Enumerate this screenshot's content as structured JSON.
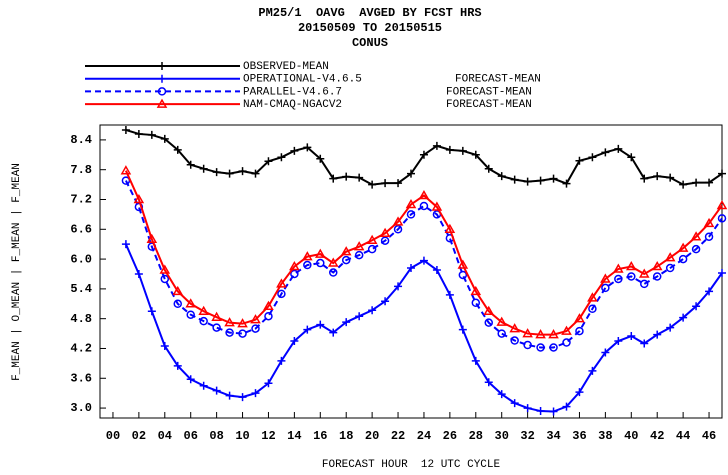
{
  "chart_data": {
    "type": "line",
    "title": [
      "PM25/1  OAVG  AVGED BY FCST HRS",
      "20150509 TO 20150515",
      "CONUS"
    ],
    "x_label": "FORECAST HOUR  12 UTC CYCLE",
    "y_label": "F_MEAN | O_MEAN | F_MEAN | F_MEAN",
    "x": [
      1,
      2,
      3,
      4,
      5,
      6,
      7,
      8,
      9,
      10,
      11,
      12,
      13,
      14,
      15,
      16,
      17,
      18,
      19,
      20,
      21,
      22,
      23,
      24,
      25,
      26,
      27,
      28,
      29,
      30,
      31,
      32,
      33,
      34,
      35,
      36,
      37,
      38,
      39,
      40,
      41,
      42,
      43,
      44,
      45,
      46,
      47
    ],
    "xlim": [
      -1,
      47
    ],
    "ylim": [
      2.8,
      8.7
    ],
    "xticks": [
      {
        "value": 0,
        "label": "00"
      },
      {
        "value": 2,
        "label": "02"
      },
      {
        "value": 4,
        "label": "04"
      },
      {
        "value": 6,
        "label": "06"
      },
      {
        "value": 8,
        "label": "08"
      },
      10,
      12,
      14,
      16,
      18,
      20,
      22,
      24,
      26,
      28,
      30,
      32,
      34,
      36,
      38,
      40,
      42,
      44,
      46
    ],
    "yticks": [
      {
        "value": 3,
        "label": "3.0"
      },
      3.6,
      4.2,
      4.8,
      5.4,
      {
        "value": 6,
        "label": "6.0"
      },
      6.6,
      7.2,
      7.8,
      8.4
    ],
    "grid": false,
    "series": [
      {
        "name": "OBSERVED-MEAN",
        "color": "#000000",
        "marker": "plus",
        "dash": false,
        "values": [
          8.6,
          8.52,
          8.5,
          8.42,
          8.2,
          7.9,
          7.82,
          7.75,
          7.72,
          7.77,
          7.72,
          7.97,
          8.05,
          8.18,
          8.25,
          8.02,
          7.62,
          7.66,
          7.64,
          7.5,
          7.53,
          7.53,
          7.72,
          8.1,
          8.28,
          8.2,
          8.18,
          8.1,
          7.82,
          7.67,
          7.6,
          7.56,
          7.58,
          7.62,
          7.52,
          7.98,
          8.05,
          8.15,
          8.22,
          8.05,
          7.62,
          7.67,
          7.64,
          7.5,
          7.54,
          7.54,
          7.72
        ]
      },
      {
        "name": "OPERATIONAL-V4.6.5",
        "description": "FORECAST-MEAN",
        "color": "#0000ff",
        "marker": "plus",
        "dash": false,
        "values": [
          6.3,
          5.7,
          4.95,
          4.25,
          3.85,
          3.58,
          3.45,
          3.35,
          3.25,
          3.22,
          3.3,
          3.5,
          3.95,
          4.35,
          4.58,
          4.68,
          4.52,
          4.73,
          4.85,
          4.97,
          5.15,
          5.45,
          5.82,
          5.97,
          5.78,
          5.28,
          4.58,
          3.95,
          3.52,
          3.28,
          3.1,
          3.0,
          2.94,
          2.93,
          3.03,
          3.32,
          3.75,
          4.12,
          4.35,
          4.45,
          4.3,
          4.48,
          4.62,
          4.82,
          5.05,
          5.35,
          5.72
        ]
      },
      {
        "name": "PARALLEL-V4.6.7",
        "description": "FORECAST-MEAN",
        "color": "#0000ff",
        "marker": "circle",
        "dash": true,
        "values": [
          7.58,
          7.05,
          6.25,
          5.6,
          5.1,
          4.88,
          4.75,
          4.62,
          4.52,
          4.5,
          4.6,
          4.85,
          5.3,
          5.7,
          5.88,
          5.92,
          5.73,
          5.98,
          6.08,
          6.2,
          6.37,
          6.6,
          6.9,
          7.07,
          6.9,
          6.42,
          5.68,
          5.12,
          4.72,
          4.5,
          4.36,
          4.27,
          4.22,
          4.22,
          4.32,
          4.55,
          5.0,
          5.42,
          5.6,
          5.65,
          5.5,
          5.65,
          5.82,
          6.0,
          6.2,
          6.45,
          6.82
        ]
      },
      {
        "name": "NAM-CMAQ-NGACV2",
        "description": "FORECAST-MEAN",
        "color": "#ff0000",
        "marker": "triangle",
        "dash": false,
        "values": [
          7.78,
          7.2,
          6.4,
          5.78,
          5.35,
          5.1,
          4.95,
          4.83,
          4.72,
          4.7,
          4.78,
          5.05,
          5.5,
          5.85,
          6.05,
          6.1,
          5.92,
          6.15,
          6.25,
          6.38,
          6.52,
          6.75,
          7.1,
          7.28,
          7.05,
          6.6,
          5.88,
          5.35,
          4.95,
          4.73,
          4.6,
          4.5,
          4.48,
          4.48,
          4.55,
          4.8,
          5.22,
          5.6,
          5.8,
          5.85,
          5.7,
          5.85,
          6.03,
          6.22,
          6.45,
          6.72,
          7.08
        ]
      }
    ]
  }
}
